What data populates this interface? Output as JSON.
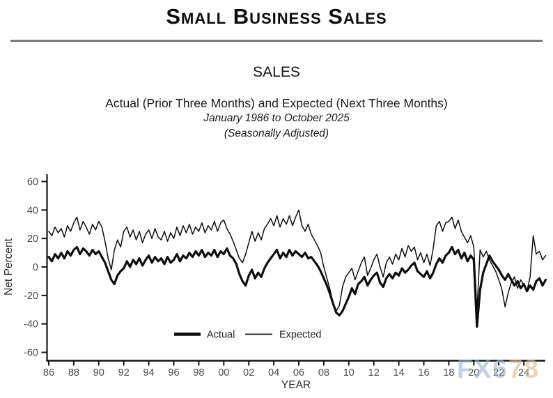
{
  "header": {
    "title": "Small Business Sales"
  },
  "chart_header": {
    "title": "SALES",
    "subtitle": "Actual (Prior Three Months) and Expected (Next Three Months)",
    "date_range": "January 1986 to October 2025",
    "note": "(Seasonally Adjusted)"
  },
  "watermark": {
    "part1": "FX6",
    "part2": "78"
  },
  "chart_data": {
    "type": "line",
    "title": "SALES",
    "xlabel": "YEAR",
    "ylabel": "Net Percent",
    "ylim": [
      -65,
      65
    ],
    "xlim": [
      1986,
      2025.75
    ],
    "grid": false,
    "legend_position": "inside-bottom-center",
    "y_ticks": [
      60,
      40,
      20,
      0,
      -20,
      -40,
      -60
    ],
    "x_tick_years": [
      1986,
      1988,
      1990,
      1992,
      1994,
      1996,
      1998,
      2000,
      2002,
      2004,
      2006,
      2008,
      2010,
      2012,
      2014,
      2016,
      2018,
      2020,
      2022,
      2024
    ],
    "x_tick_labels": [
      "86",
      "88",
      "90",
      "92",
      "94",
      "96",
      "98",
      "00",
      "02",
      "04",
      "06",
      "08",
      "10",
      "12",
      "14",
      "16",
      "18",
      "20",
      "22",
      "24"
    ],
    "x_start": 1986.0,
    "x_step": 0.25,
    "colors": {
      "line": "#0d0d0d",
      "axis": "#141414",
      "tick_label": "#4a4a4a"
    },
    "series": [
      {
        "name": "Actual",
        "stroke_width": 3.2,
        "values": [
          7,
          4,
          9,
          6,
          10,
          6,
          11,
          8,
          12,
          14,
          9,
          13,
          11,
          8,
          12,
          9,
          11,
          7,
          3,
          -3,
          -9,
          -12,
          -6,
          -3,
          -1,
          4,
          0,
          5,
          2,
          6,
          1,
          5,
          8,
          3,
          7,
          4,
          6,
          2,
          7,
          3,
          5,
          9,
          4,
          8,
          6,
          10,
          7,
          11,
          8,
          12,
          7,
          10,
          8,
          12,
          7,
          11,
          9,
          13,
          8,
          6,
          2,
          -5,
          -10,
          -13,
          -6,
          -2,
          -8,
          -4,
          -7,
          -1,
          3,
          6,
          9,
          12,
          6,
          10,
          7,
          12,
          8,
          11,
          9,
          7,
          10,
          6,
          7,
          4,
          1,
          -3,
          -8,
          -13,
          -19,
          -26,
          -32,
          -34,
          -31,
          -26,
          -21,
          -15,
          -19,
          -12,
          -10,
          -7,
          -13,
          -9,
          -6,
          -4,
          -11,
          -14,
          -8,
          -5,
          -8,
          -4,
          -6,
          -1,
          -4,
          -2,
          1,
          3,
          -3,
          -5,
          -7,
          -3,
          -8,
          -4,
          2,
          6,
          3,
          8,
          10,
          14,
          9,
          12,
          6,
          10,
          4,
          8,
          5,
          -42,
          -16,
          -4,
          2,
          8,
          4,
          1,
          -2,
          -6,
          -9,
          -5,
          -9,
          -13,
          -10,
          -15,
          -12,
          -17,
          -13,
          -16,
          -10,
          -8,
          -13,
          -9
        ]
      },
      {
        "name": "Expected",
        "stroke_width": 1.5,
        "values": [
          25,
          22,
          28,
          24,
          27,
          21,
          29,
          25,
          31,
          35,
          26,
          32,
          28,
          23,
          30,
          26,
          32,
          28,
          18,
          6,
          -2,
          12,
          19,
          14,
          25,
          28,
          21,
          26,
          19,
          25,
          17,
          23,
          26,
          20,
          27,
          21,
          19,
          25,
          18,
          24,
          20,
          28,
          22,
          29,
          24,
          30,
          23,
          28,
          25,
          31,
          24,
          29,
          26,
          32,
          25,
          31,
          33,
          27,
          23,
          18,
          12,
          6,
          3,
          9,
          17,
          25,
          18,
          24,
          19,
          27,
          30,
          34,
          29,
          36,
          28,
          34,
          30,
          36,
          29,
          35,
          40,
          29,
          25,
          30,
          23,
          19,
          15,
          10,
          0,
          -8,
          -16,
          -26,
          -31,
          -27,
          -14,
          -7,
          -4,
          -1,
          -9,
          -3,
          3,
          7,
          -6,
          -1,
          5,
          9,
          0,
          -7,
          3,
          7,
          2,
          9,
          5,
          13,
          7,
          15,
          11,
          14,
          5,
          10,
          3,
          9,
          1,
          13,
          29,
          32,
          25,
          31,
          32,
          35,
          27,
          33,
          25,
          21,
          17,
          22,
          14,
          -31,
          12,
          7,
          11,
          5,
          1,
          -3,
          -9,
          -16,
          -28,
          -18,
          -11,
          -7,
          -15,
          -9,
          -13,
          -17,
          -7,
          22,
          9,
          11,
          5,
          8
        ]
      }
    ]
  }
}
